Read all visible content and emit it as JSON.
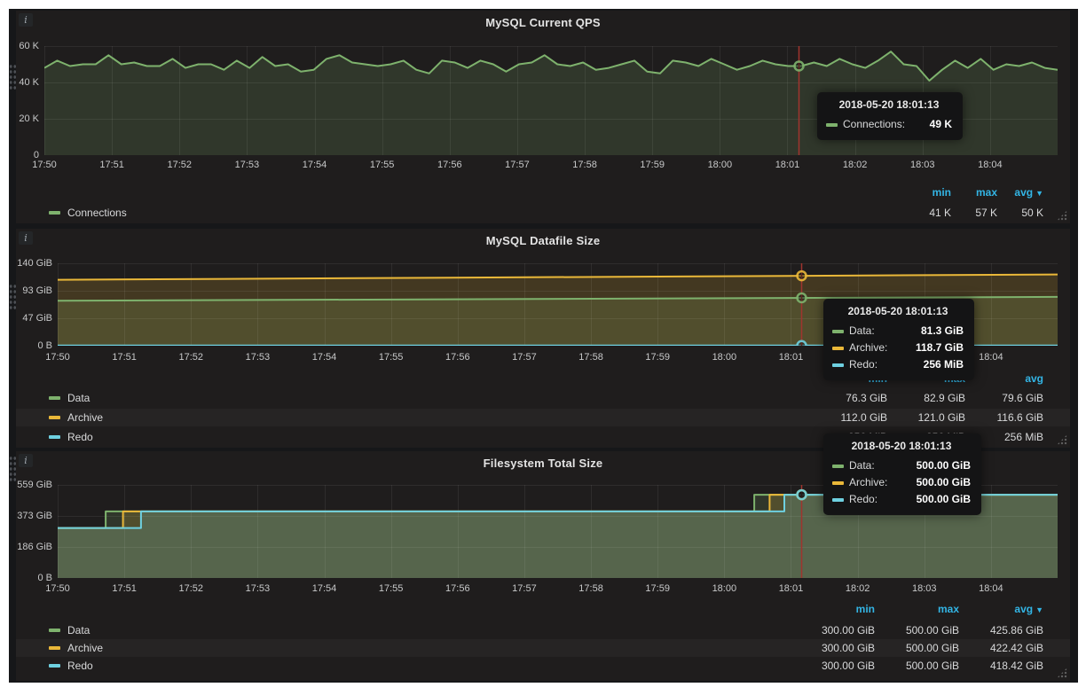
{
  "x_axis_labels": [
    "17:50",
    "17:51",
    "17:52",
    "17:53",
    "17:54",
    "17:55",
    "17:56",
    "17:57",
    "17:58",
    "17:59",
    "18:00",
    "18:01",
    "18:02",
    "18:03",
    "18:04"
  ],
  "colors": {
    "green": "#7eb26d",
    "yellow": "#eab839",
    "blue": "#6ed0e0",
    "crosshair_red": "#a0342e",
    "legend_header_blue": "#33b5e5",
    "panel_bg": "#1f1d1d",
    "page_bg": "#161719"
  },
  "panels": [
    {
      "title": "MySQL Current QPS",
      "info_icon": "i",
      "y_axis_labels": [
        "0",
        "20 K",
        "40 K",
        "60 K"
      ],
      "legend": {
        "header": {
          "min": "min",
          "max": "max",
          "avg": "avg",
          "sort_caret_on": "avg"
        },
        "rows": [
          {
            "name": "Connections",
            "color": "#7eb26d",
            "min": "41 K",
            "max": "57 K",
            "avg": "50 K"
          }
        ]
      },
      "tooltip": {
        "time": "2018-05-20 18:01:13",
        "rows": [
          {
            "name": "Connections:",
            "value": "49 K",
            "color": "#7eb26d"
          }
        ]
      }
    },
    {
      "title": "MySQL Datafile Size",
      "info_icon": "i",
      "y_axis_labels": [
        "0 B",
        "47 GiB",
        "93 GiB",
        "140 GiB"
      ],
      "legend": {
        "header": {
          "min": "min",
          "max": "max",
          "avg": "avg",
          "sort_caret_on": ""
        },
        "rows": [
          {
            "name": "Data",
            "color": "#7eb26d",
            "min": "76.3 GiB",
            "max": "82.9 GiB",
            "avg": "79.6 GiB"
          },
          {
            "name": "Archive",
            "color": "#eab839",
            "min": "112.0 GiB",
            "max": "121.0 GiB",
            "avg": "116.6 GiB"
          },
          {
            "name": "Redo",
            "color": "#6ed0e0",
            "min": "256 MiB",
            "max": "256 MiB",
            "avg": "256 MiB"
          }
        ]
      },
      "tooltip": {
        "time": "2018-05-20 18:01:13",
        "rows": [
          {
            "name": "Data:",
            "value": "81.3 GiB",
            "color": "#7eb26d"
          },
          {
            "name": "Archive:",
            "value": "118.7 GiB",
            "color": "#eab839"
          },
          {
            "name": "Redo:",
            "value": "256 MiB",
            "color": "#6ed0e0"
          }
        ]
      }
    },
    {
      "title": "Filesystem Total Size",
      "info_icon": "i",
      "y_axis_labels": [
        "0 B",
        "186 GiB",
        "373 GiB",
        "559 GiB"
      ],
      "legend": {
        "header": {
          "min": "min",
          "max": "max",
          "avg": "avg",
          "sort_caret_on": "avg"
        },
        "rows": [
          {
            "name": "Data",
            "color": "#7eb26d",
            "min": "300.00 GiB",
            "max": "500.00 GiB",
            "avg": "425.86 GiB"
          },
          {
            "name": "Archive",
            "color": "#eab839",
            "min": "300.00 GiB",
            "max": "500.00 GiB",
            "avg": "422.42 GiB"
          },
          {
            "name": "Redo",
            "color": "#6ed0e0",
            "min": "300.00 GiB",
            "max": "500.00 GiB",
            "avg": "418.42 GiB"
          }
        ]
      },
      "tooltip": {
        "time": "2018-05-20 18:01:13",
        "rows": [
          {
            "name": "Data:",
            "value": "500.00 GiB",
            "color": "#7eb26d"
          },
          {
            "name": "Archive:",
            "value": "500.00 GiB",
            "color": "#eab839"
          },
          {
            "name": "Redo:",
            "value": "500.00 GiB",
            "color": "#6ed0e0"
          }
        ]
      }
    }
  ],
  "chart_data": [
    {
      "type": "line",
      "title": "MySQL Current QPS",
      "x_tick_labels": [
        "17:50",
        "17:51",
        "17:52",
        "17:53",
        "17:54",
        "17:55",
        "17:56",
        "17:57",
        "17:58",
        "17:59",
        "18:00",
        "18:01",
        "18:02",
        "18:03",
        "18:04"
      ],
      "x_range_minutes": [
        0,
        15
      ],
      "ylim": [
        0,
        60
      ],
      "y_ticks": [
        0,
        20,
        40,
        60
      ],
      "y_tick_labels": [
        "0",
        "20 K",
        "40 K",
        "60 K"
      ],
      "unit": "K queries",
      "legend_position": "bottom",
      "grid": true,
      "series": [
        {
          "name": "Connections",
          "color": "#7eb26d",
          "values_k": [
            48,
            52,
            49,
            50,
            50,
            55,
            50,
            51,
            49,
            49,
            53,
            48,
            50,
            50,
            47,
            52,
            48,
            54,
            49,
            50,
            46,
            47,
            53,
            55,
            51,
            50,
            49,
            50,
            52,
            47,
            45,
            52,
            51,
            48,
            52,
            50,
            46,
            50,
            51,
            55,
            50,
            49,
            51,
            47,
            48,
            50,
            52,
            46,
            45,
            52,
            51,
            49,
            53,
            50,
            47,
            49,
            52,
            50,
            49,
            49,
            51,
            49,
            53,
            50,
            48,
            52,
            57,
            50,
            49,
            41,
            47,
            52,
            48,
            53,
            47,
            50,
            49,
            51,
            48,
            47
          ],
          "stats": {
            "min_k": 41,
            "max_k": 57,
            "avg_k": 50
          }
        }
      ],
      "crosshair": {
        "t_min": 11.16,
        "time": "2018-05-20 18:01:13",
        "marker_values": [
          49
        ]
      }
    },
    {
      "type": "line",
      "title": "MySQL Datafile Size",
      "x_tick_labels": [
        "17:50",
        "17:51",
        "17:52",
        "17:53",
        "17:54",
        "17:55",
        "17:56",
        "17:57",
        "17:58",
        "17:59",
        "18:00",
        "18:01",
        "18:02",
        "18:03",
        "18:04"
      ],
      "x_range_minutes": [
        0,
        15
      ],
      "ylim": [
        0,
        140
      ],
      "y_ticks": [
        0,
        47,
        93,
        140
      ],
      "y_tick_labels": [
        "0 B",
        "47 GiB",
        "93 GiB",
        "140 GiB"
      ],
      "unit": "GiB",
      "legend_position": "bottom",
      "grid": true,
      "series": [
        {
          "name": "Data",
          "color": "#7eb26d",
          "points": [
            [
              0,
              76.3
            ],
            [
              15,
              82.9
            ]
          ],
          "stats": {
            "min": 76.3,
            "max": 82.9,
            "avg": 79.6
          }
        },
        {
          "name": "Archive",
          "color": "#eab839",
          "points": [
            [
              0,
              112.0
            ],
            [
              15,
              121.0
            ]
          ],
          "stats": {
            "min": 112.0,
            "max": 121.0,
            "avg": 116.6
          }
        },
        {
          "name": "Redo",
          "color": "#6ed0e0",
          "points": [
            [
              0,
              0.25
            ],
            [
              15,
              0.25
            ]
          ],
          "stats": {
            "min": 0.25,
            "max": 0.25,
            "avg": 0.25
          }
        }
      ],
      "crosshair": {
        "t_min": 11.16,
        "time": "2018-05-20 18:01:13",
        "marker_values": [
          81.3,
          118.7,
          0.25
        ]
      }
    },
    {
      "type": "line",
      "title": "Filesystem Total Size",
      "x_tick_labels": [
        "17:50",
        "17:51",
        "17:52",
        "17:53",
        "17:54",
        "17:55",
        "17:56",
        "17:57",
        "17:58",
        "17:59",
        "18:00",
        "18:01",
        "18:02",
        "18:03",
        "18:04"
      ],
      "x_range_minutes": [
        0,
        15
      ],
      "ylim": [
        0,
        559
      ],
      "y_ticks": [
        0,
        186,
        373,
        559
      ],
      "y_tick_labels": [
        "0 B",
        "186 GiB",
        "373 GiB",
        "559 GiB"
      ],
      "unit": "GiB",
      "legend_position": "bottom",
      "grid": true,
      "series": [
        {
          "name": "Data",
          "color": "#7eb26d",
          "points": [
            [
              0,
              300
            ],
            [
              0.72,
              300
            ],
            [
              0.72,
              400
            ],
            [
              10.45,
              400
            ],
            [
              10.45,
              500
            ],
            [
              15,
              500
            ]
          ],
          "stats": {
            "min": 300,
            "max": 500,
            "avg": 425.86
          }
        },
        {
          "name": "Archive",
          "color": "#eab839",
          "points": [
            [
              0,
              300
            ],
            [
              0.98,
              300
            ],
            [
              0.98,
              400
            ],
            [
              10.68,
              400
            ],
            [
              10.68,
              500
            ],
            [
              15,
              500
            ]
          ],
          "stats": {
            "min": 300,
            "max": 500,
            "avg": 422.42
          }
        },
        {
          "name": "Redo",
          "color": "#6ed0e0",
          "points": [
            [
              0,
              300
            ],
            [
              1.25,
              300
            ],
            [
              1.25,
              400
            ],
            [
              10.9,
              400
            ],
            [
              10.9,
              500
            ],
            [
              15,
              500
            ]
          ],
          "stats": {
            "min": 300,
            "max": 500,
            "avg": 418.42
          }
        }
      ],
      "crosshair": {
        "t_min": 11.16,
        "time": "2018-05-20 18:01:13",
        "marker_values": [
          500,
          500,
          500
        ]
      }
    }
  ]
}
